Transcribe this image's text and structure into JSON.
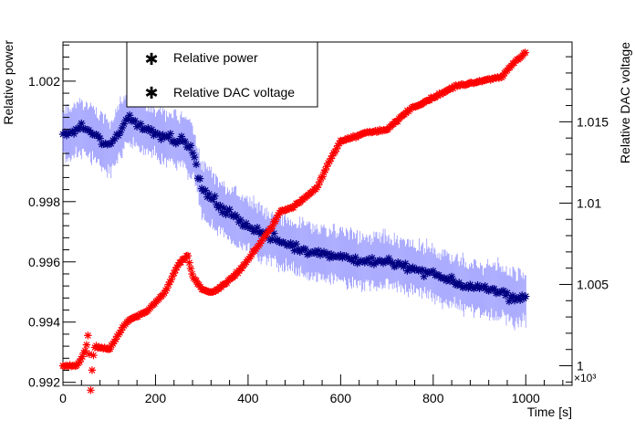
{
  "chart_data": {
    "type": "scatter",
    "x_axis": {
      "label": "Time [s]",
      "range": [
        0,
        1100
      ],
      "ticks": [
        0,
        200,
        400,
        600,
        800,
        1000
      ],
      "tick_labels": [
        "0",
        "200",
        "400",
        "600",
        "800",
        "1000"
      ],
      "exponent_label": "×10³"
    },
    "y_left_axis": {
      "label": "Relative power",
      "range": [
        0.9919,
        1.0033
      ],
      "ticks": [
        0.992,
        0.994,
        0.996,
        0.998,
        1.002
      ],
      "tick_labels": [
        "0.992",
        "0.994",
        "0.996",
        "0.998",
        "1.002"
      ]
    },
    "y_right_axis": {
      "label": "Relative DAC voltage",
      "range": [
        0.998795,
        1.019905
      ],
      "ticks": [
        1.0,
        1.005,
        1.01,
        1.015
      ],
      "tick_labels": [
        "1",
        "1.005",
        "1.01",
        "1.015"
      ]
    },
    "legend": {
      "placement": "top-left",
      "entries": [
        {
          "label": "Relative power",
          "color": "#000000",
          "marker": "star"
        },
        {
          "label": "Relative DAC voltage",
          "color": "#ff0000",
          "marker": "star"
        }
      ]
    },
    "series": [
      {
        "name": "Relative power",
        "axis": "left",
        "color": "#000080",
        "error_color": "#7b7bff",
        "error": 0.0008,
        "x": [
          0,
          20,
          40,
          60,
          100,
          140,
          180,
          220,
          260,
          280,
          300,
          350,
          400,
          450,
          500,
          550,
          600,
          650,
          700,
          750,
          800,
          850,
          900,
          950,
          970,
          1000
        ],
        "y": [
          1.0002,
          1.0003,
          1.0005,
          1.0003,
          0.9998,
          1.0008,
          1.0004,
          1.0002,
          1.0,
          0.9997,
          0.9984,
          0.9977,
          0.9972,
          0.9968,
          0.9965,
          0.9963,
          0.9962,
          0.996,
          0.996,
          0.9958,
          0.9956,
          0.9953,
          0.9951,
          0.995,
          0.9948,
          0.9948
        ]
      },
      {
        "name": "Relative DAC voltage",
        "axis": "right",
        "color": "#ff0000",
        "x": [
          0,
          30,
          50,
          55,
          60,
          65,
          70,
          100,
          140,
          180,
          220,
          250,
          270,
          280,
          300,
          320,
          350,
          380,
          400,
          450,
          470,
          500,
          550,
          580,
          600,
          650,
          700,
          750,
          800,
          850,
          900,
          950,
          970,
          1000
        ],
        "y": [
          1.0,
          1.0,
          1.001,
          1.0022,
          0.9985,
          1.0005,
          1.0012,
          1.001,
          1.0028,
          1.0033,
          1.0045,
          1.0063,
          1.0068,
          1.0055,
          1.0047,
          1.0045,
          1.005,
          1.0058,
          1.0065,
          1.0085,
          1.0095,
          1.0098,
          1.011,
          1.0128,
          1.0138,
          1.0143,
          1.0145,
          1.0158,
          1.0165,
          1.0172,
          1.0175,
          1.0178,
          1.0185,
          1.0193
        ]
      }
    ]
  }
}
